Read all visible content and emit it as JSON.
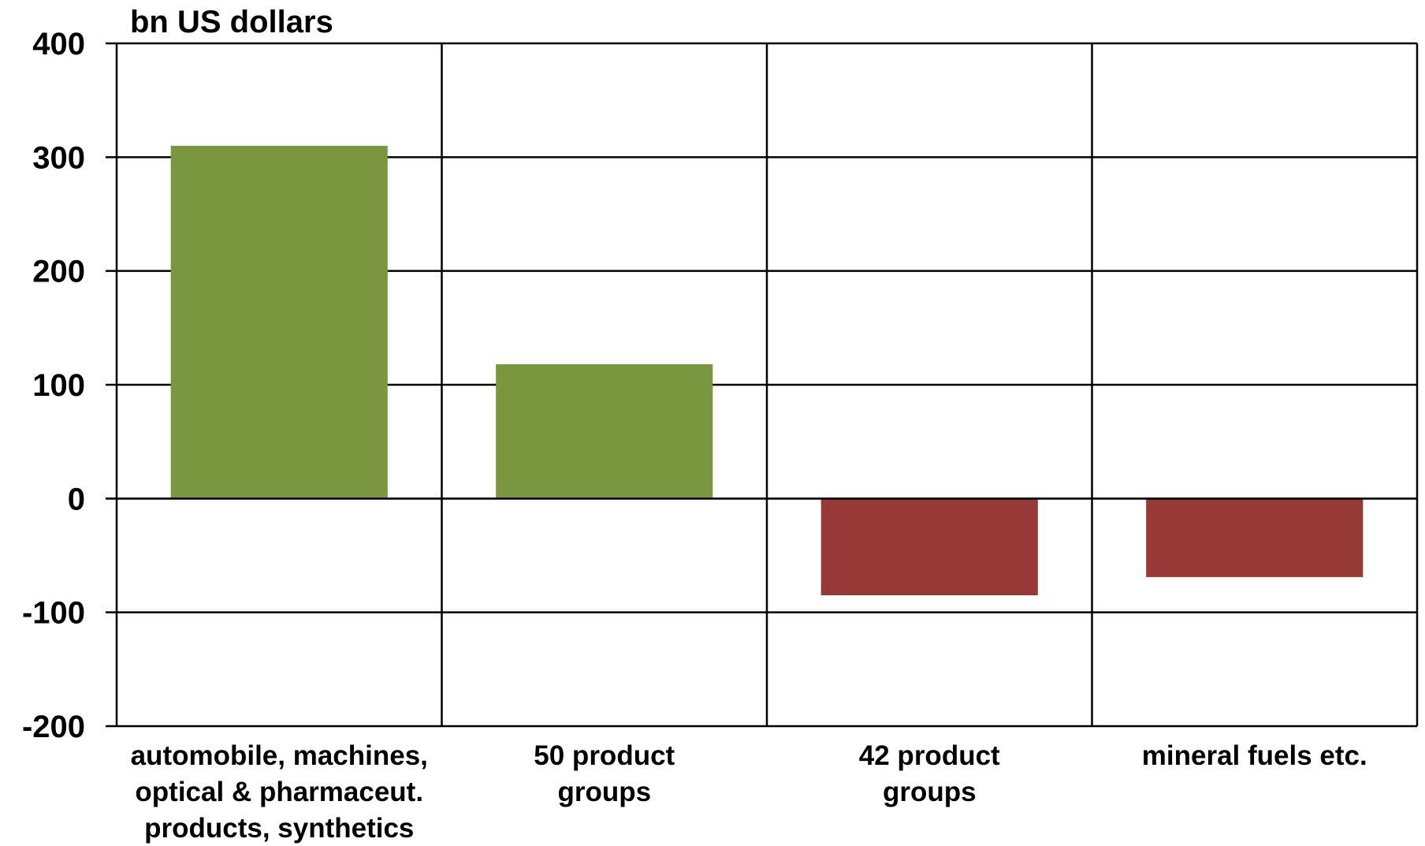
{
  "chart_data": {
    "type": "bar",
    "unit_label": "bn US dollars",
    "categories": [
      [
        "automobile, machines,",
        "optical & pharmaceut.",
        "products, synthetics"
      ],
      [
        "50 product",
        "groups"
      ],
      [
        "42 product",
        "groups"
      ],
      [
        "mineral fuels etc."
      ]
    ],
    "values": [
      310,
      118,
      -85,
      -69
    ],
    "bar_colors": [
      "#7a963e",
      "#7a963e",
      "#963937",
      "#963937"
    ],
    "ylim": [
      -200,
      400
    ],
    "yticks": [
      "400",
      "300",
      "200",
      "100",
      "0",
      "-100",
      "-200"
    ],
    "grid": true
  }
}
